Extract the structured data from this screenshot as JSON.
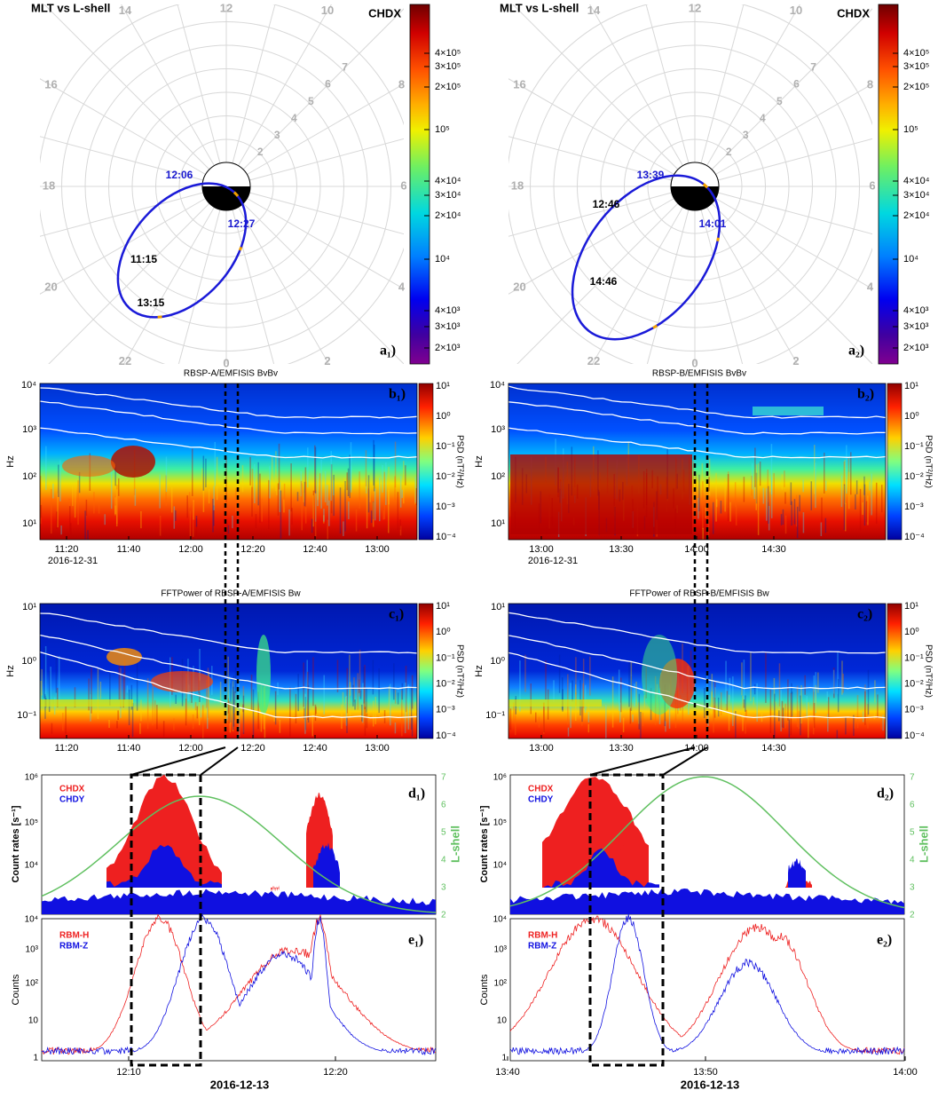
{
  "columns": [
    {
      "polar": {
        "title": "MLT vs L-shell",
        "colorbar_label": "CHDX",
        "mlt_labels": [
          "12",
          "14",
          "16",
          "18",
          "20",
          "22",
          "0",
          "2",
          "4",
          "6",
          "8",
          "10"
        ],
        "l_labels": [
          "2",
          "3",
          "4",
          "5",
          "6",
          "7"
        ],
        "time_labels": [
          "12:06",
          "11:15",
          "12:27",
          "13:15"
        ],
        "colorbar_ticks": [
          "4×10⁵",
          "3×10⁵",
          "2×10⁵",
          "10⁵",
          "4×10⁴",
          "3×10⁴",
          "2×10⁴",
          "10⁴",
          "4×10³",
          "3×10³",
          "2×10³"
        ],
        "panel_label": "a₁)"
      },
      "waves": {
        "title": "RBSP-A/EMFISIS BvBv",
        "y_label": "Hz",
        "y_ticks": [
          "10⁴",
          "10³",
          "10²",
          "10¹"
        ],
        "colorbar_label": "PSD (nT²/Hz)",
        "colorbar_ticks": [
          "10¹",
          "10⁰",
          "10⁻¹",
          "10⁻²",
          "10⁻³",
          "10⁻⁴"
        ],
        "x_ticks": [
          "11:20",
          "11:40",
          "12:00",
          "12:20",
          "12:40",
          "13:00"
        ],
        "date": "2016-12-31",
        "panel_label": "b₁)"
      },
      "fft": {
        "title": "FFTPower of RBSP-A/EMFISIS Bw",
        "y_label": "Hz",
        "y_ticks": [
          "10¹",
          "10⁰",
          "10⁻¹"
        ],
        "colorbar_label": "PSD (nT²/Hz)",
        "colorbar_ticks": [
          "10¹",
          "10⁰",
          "10⁻¹",
          "10⁻²",
          "10⁻³",
          "10⁻⁴"
        ],
        "x_ticks": [
          "11:20",
          "11:40",
          "12:00",
          "12:20",
          "12:40",
          "13:00"
        ],
        "panel_label": "c₁)"
      },
      "count_rates": {
        "y_label": "Count rates [s⁻¹]",
        "y_ticks": [
          "10⁶",
          "10⁵",
          "10⁴"
        ],
        "y2_label": "L-shell",
        "y2_ticks": [
          "7",
          "6",
          "5",
          "4",
          "3",
          "2"
        ],
        "legend": [
          "CHDX",
          "CHDY"
        ],
        "panel_label": "d₁)"
      },
      "counts": {
        "y_label": "Counts",
        "y_ticks": [
          "10⁴",
          "10³",
          "10²",
          "10",
          "1"
        ],
        "legend": [
          "RBM-H",
          "RBM-Z"
        ],
        "x_ticks": [
          "12:10",
          "12:20"
        ],
        "date": "2016-12-13",
        "panel_label": "e₁)"
      }
    },
    {
      "polar": {
        "title": "MLT vs L-shell",
        "colorbar_label": "CHDX",
        "mlt_labels": [
          "12",
          "14",
          "16",
          "18",
          "20",
          "22",
          "0",
          "2",
          "4",
          "6",
          "8",
          "10"
        ],
        "l_labels": [
          "2",
          "3",
          "4",
          "5",
          "6",
          "7"
        ],
        "time_labels": [
          "13:39",
          "12:46",
          "14:01",
          "14:46"
        ],
        "colorbar_ticks": [
          "4×10⁵",
          "3×10⁵",
          "2×10⁵",
          "10⁵",
          "4×10⁴",
          "3×10⁴",
          "2×10⁴",
          "10⁴",
          "4×10³",
          "3×10³",
          "2×10³"
        ],
        "panel_label": "a₂)"
      },
      "waves": {
        "title": "RBSP-B/EMFISIS BvBv",
        "y_label": "Hz",
        "y_ticks": [
          "10⁴",
          "10³",
          "10²",
          "10¹"
        ],
        "colorbar_label": "PSD (nT²/Hz)",
        "colorbar_ticks": [
          "10¹",
          "10⁰",
          "10⁻¹",
          "10⁻²",
          "10⁻³",
          "10⁻⁴"
        ],
        "x_ticks": [
          "13:00",
          "13:30",
          "14:00",
          "14:30"
        ],
        "date": "2016-12-31",
        "panel_label": "b₂)"
      },
      "fft": {
        "title": "FFTPower of RBSP-B/EMFISIS Bw",
        "y_label": "Hz",
        "y_ticks": [
          "10¹",
          "10⁰",
          "10⁻¹"
        ],
        "colorbar_label": "PSD (nT²/Hz)",
        "colorbar_ticks": [
          "10¹",
          "10⁰",
          "10⁻¹",
          "10⁻²",
          "10⁻³",
          "10⁻⁴"
        ],
        "x_ticks": [
          "13:00",
          "13:30",
          "14:00",
          "14:30"
        ],
        "panel_label": "c₂)"
      },
      "count_rates": {
        "y_label": "Count rates [s⁻¹]",
        "y_ticks": [
          "10⁶",
          "10⁵",
          "10⁴"
        ],
        "y2_label": "L-shell",
        "y2_ticks": [
          "7",
          "6",
          "5",
          "4",
          "3",
          "2"
        ],
        "legend": [
          "CHDX",
          "CHDY"
        ],
        "panel_label": "d₂)"
      },
      "counts": {
        "y_label": "Counts",
        "y_ticks": [
          "10⁴",
          "10³",
          "10²",
          "10",
          "1"
        ],
        "legend": [
          "RBM-H",
          "RBM-Z"
        ],
        "x_ticks": [
          "13:40",
          "13:50",
          "14:00"
        ],
        "date": "2016-12-13",
        "panel_label": "e₂)"
      }
    }
  ]
}
